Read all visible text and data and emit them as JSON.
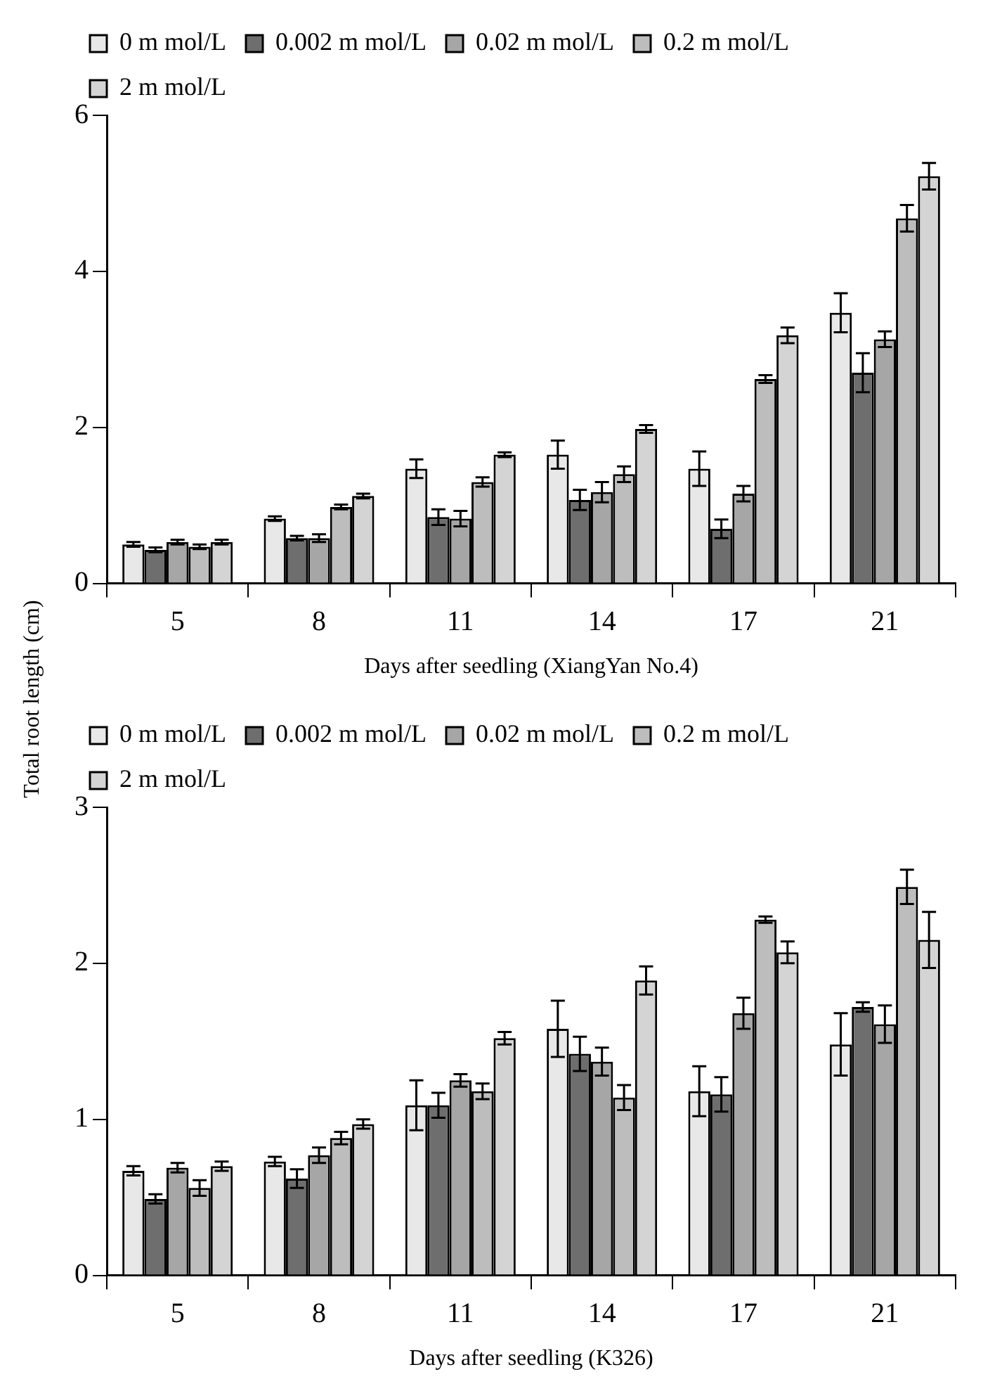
{
  "chart_data": [
    {
      "type": "bar",
      "xlabel": "Days after seedling (XiangYan No.4)",
      "ylabel": "Total root length (cm)",
      "categories": [
        "5",
        "8",
        "11",
        "14",
        "17",
        "21"
      ],
      "ylim": [
        0,
        6
      ],
      "yticks": [
        0,
        2,
        4,
        6
      ],
      "legend": "top",
      "grid": false,
      "series": [
        {
          "name": "0 m mol/L",
          "color": "#e8e8e8",
          "values": [
            0.5,
            0.83,
            1.47,
            1.65,
            1.47,
            3.47
          ],
          "errors": [
            0.03,
            0.03,
            0.12,
            0.18,
            0.22,
            0.25
          ]
        },
        {
          "name": "0.002 m mol/L",
          "color": "#6e6e6e",
          "values": [
            0.43,
            0.58,
            0.85,
            1.07,
            0.7,
            2.7
          ],
          "errors": [
            0.03,
            0.03,
            0.1,
            0.13,
            0.12,
            0.25
          ]
        },
        {
          "name": "0.02 m mol/L",
          "color": "#a6a6a6",
          "values": [
            0.53,
            0.58,
            0.83,
            1.17,
            1.15,
            3.13
          ],
          "errors": [
            0.03,
            0.05,
            0.1,
            0.13,
            0.1,
            0.1
          ]
        },
        {
          "name": "0.2 m mol/L",
          "color": "#bdbdbd",
          "values": [
            0.47,
            0.98,
            1.3,
            1.4,
            2.62,
            4.68
          ],
          "errors": [
            0.03,
            0.03,
            0.06,
            0.1,
            0.05,
            0.17
          ]
        },
        {
          "name": "2 m mol/L",
          "color": "#d4d4d4",
          "values": [
            0.53,
            1.12,
            1.65,
            1.98,
            3.18,
            5.22
          ],
          "errors": [
            0.03,
            0.03,
            0.03,
            0.05,
            0.1,
            0.17
          ]
        }
      ]
    },
    {
      "type": "bar",
      "xlabel": "Days after seedling (K326)",
      "categories": [
        "5",
        "8",
        "11",
        "14",
        "17",
        "21"
      ],
      "ylim": [
        0,
        3
      ],
      "yticks": [
        0,
        1,
        2,
        3
      ],
      "legend": "top",
      "grid": false,
      "series": [
        {
          "name": "0 m mol/L",
          "color": "#e8e8e8",
          "values": [
            0.67,
            0.73,
            1.09,
            1.58,
            1.18,
            1.48
          ],
          "errors": [
            0.03,
            0.03,
            0.16,
            0.18,
            0.16,
            0.2
          ]
        },
        {
          "name": "0.002 m mol/L",
          "color": "#6e6e6e",
          "values": [
            0.49,
            0.62,
            1.09,
            1.42,
            1.16,
            1.72
          ],
          "errors": [
            0.03,
            0.06,
            0.08,
            0.11,
            0.11,
            0.03
          ]
        },
        {
          "name": "0.02 m mol/L",
          "color": "#a6a6a6",
          "values": [
            0.69,
            0.77,
            1.25,
            1.37,
            1.68,
            1.61
          ],
          "errors": [
            0.03,
            0.05,
            0.04,
            0.09,
            0.1,
            0.12
          ]
        },
        {
          "name": "0.2 m mol/L",
          "color": "#bdbdbd",
          "values": [
            0.56,
            0.88,
            1.18,
            1.14,
            2.28,
            2.49
          ],
          "errors": [
            0.05,
            0.04,
            0.05,
            0.08,
            0.02,
            0.11
          ]
        },
        {
          "name": "2 m mol/L",
          "color": "#d4d4d4",
          "values": [
            0.7,
            0.97,
            1.52,
            1.89,
            2.07,
            2.15
          ],
          "errors": [
            0.03,
            0.03,
            0.04,
            0.09,
            0.07,
            0.18
          ]
        }
      ]
    }
  ]
}
